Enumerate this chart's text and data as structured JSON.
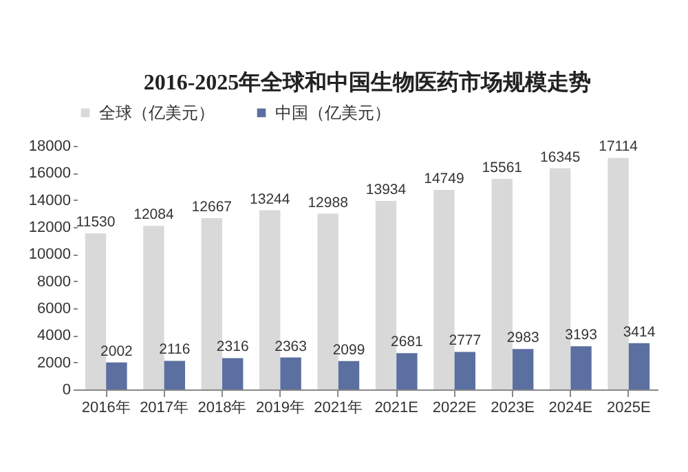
{
  "chart_data": {
    "type": "bar",
    "title": "2016-2025年全球和中国生物医药市场规模走势",
    "categories": [
      "2016年",
      "2017年",
      "2018年",
      "2019年",
      "2021年",
      "2021E",
      "2022E",
      "2023E",
      "2024E",
      "2025E"
    ],
    "series": [
      {
        "name": "全球（亿美元）",
        "color": "#d9d9d9",
        "values": [
          11530,
          12084,
          12667,
          13244,
          12988,
          13934,
          14749,
          15561,
          16345,
          17114
        ]
      },
      {
        "name": "中国（亿美元）",
        "color": "#5b6fa0",
        "values": [
          2002,
          2116,
          2316,
          2363,
          2099,
          2681,
          2777,
          2983,
          3193,
          3414
        ]
      }
    ],
    "ylim": [
      0,
      18000
    ],
    "yticks": [
      0,
      2000,
      4000,
      6000,
      8000,
      10000,
      12000,
      14000,
      16000,
      18000
    ],
    "data_labels": true,
    "grid": false,
    "legend": "top"
  }
}
